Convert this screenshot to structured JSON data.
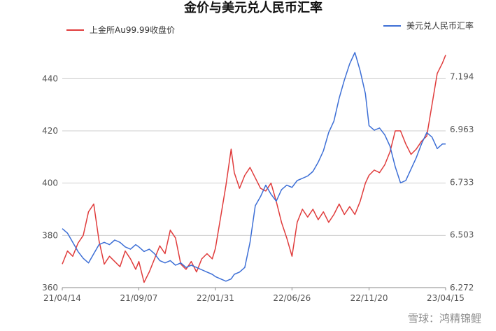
{
  "chart_data": {
    "type": "line",
    "title": "金价与美元兑人民币汇率",
    "xlabel": "",
    "ylabel": "",
    "x_ticks": [
      "21/04/14",
      "21/09/07",
      "22/01/31",
      "22/06/26",
      "22/11/20",
      "23/04/15"
    ],
    "x_range": [
      "21/04/14",
      "23/04/15"
    ],
    "y_left": {
      "ticks": [
        "360",
        "380",
        "400",
        "420",
        "440"
      ],
      "ylim": [
        360,
        450
      ]
    },
    "y_right": {
      "ticks": [
        "6.272",
        "6.503",
        "6.733",
        "6.963",
        "7.194"
      ],
      "ylim": [
        6.272,
        7.3
      ]
    },
    "grid": "horizontal",
    "legend": {
      "left": "top-left",
      "right": "top-right"
    },
    "series": [
      {
        "name": "上金所Au99.99收盘价",
        "axis": "left",
        "color": "#e03c3c",
        "x": [
          "21/04/14",
          "21/04/24",
          "21/05/04",
          "21/05/14",
          "21/05/24",
          "21/06/03",
          "21/06/13",
          "21/06/23",
          "21/07/03",
          "21/07/13",
          "21/07/23",
          "21/08/02",
          "21/08/12",
          "21/08/22",
          "21/09/01",
          "21/09/07",
          "21/09/17",
          "21/09/27",
          "21/10/07",
          "21/10/17",
          "21/10/27",
          "21/11/06",
          "21/11/16",
          "21/11/26",
          "21/12/06",
          "21/12/16",
          "21/12/26",
          "22/01/05",
          "22/01/15",
          "22/01/25",
          "22/01/31",
          "22/02/10",
          "22/02/20",
          "22/03/02",
          "22/03/08",
          "22/03/18",
          "22/03/28",
          "22/04/07",
          "22/04/17",
          "22/04/27",
          "22/05/07",
          "22/05/17",
          "22/05/27",
          "22/06/06",
          "22/06/16",
          "22/06/26",
          "22/07/06",
          "22/07/16",
          "22/07/26",
          "22/08/05",
          "22/08/15",
          "22/08/25",
          "22/09/04",
          "22/09/14",
          "22/09/24",
          "22/10/04",
          "22/10/14",
          "22/10/24",
          "22/11/03",
          "22/11/13",
          "22/11/20",
          "22/11/30",
          "22/12/10",
          "22/12/20",
          "22/12/30",
          "23/01/09",
          "23/01/19",
          "23/01/29",
          "23/02/08",
          "23/02/18",
          "23/02/28",
          "23/03/10",
          "23/03/20",
          "23/03/30",
          "23/04/09",
          "23/04/15"
        ],
        "values": [
          369,
          374,
          372,
          377,
          380,
          389,
          392,
          378,
          369,
          372,
          370,
          368,
          374,
          371,
          367,
          370,
          362,
          366,
          371,
          376,
          373,
          382,
          379,
          369,
          367,
          370,
          366,
          371,
          373,
          371,
          375,
          387,
          399,
          413,
          404,
          398,
          403,
          406,
          402,
          398,
          397,
          400,
          393,
          385,
          379,
          372,
          385,
          390,
          387,
          390,
          386,
          389,
          385,
          388,
          392,
          388,
          391,
          388,
          393,
          400,
          403,
          405,
          404,
          407,
          412,
          420,
          420,
          415,
          411,
          413,
          416,
          418,
          430,
          442,
          446,
          449
        ]
      },
      {
        "name": "美元兑人民币汇率",
        "axis": "right",
        "color": "#3d6fd6",
        "x": [
          "21/04/14",
          "21/04/24",
          "21/05/04",
          "21/05/14",
          "21/05/24",
          "21/06/03",
          "21/06/13",
          "21/06/23",
          "21/07/03",
          "21/07/13",
          "21/07/23",
          "21/08/02",
          "21/08/12",
          "21/08/22",
          "21/09/01",
          "21/09/07",
          "21/09/17",
          "21/09/27",
          "21/10/07",
          "21/10/17",
          "21/10/27",
          "21/11/06",
          "21/11/16",
          "21/11/26",
          "21/12/06",
          "21/12/16",
          "21/12/26",
          "22/01/05",
          "22/01/15",
          "22/01/25",
          "22/01/31",
          "22/02/10",
          "22/02/20",
          "22/03/02",
          "22/03/08",
          "22/03/18",
          "22/03/28",
          "22/04/07",
          "22/04/17",
          "22/04/27",
          "22/05/07",
          "22/05/17",
          "22/05/27",
          "22/06/06",
          "22/06/16",
          "22/06/26",
          "22/07/06",
          "22/07/16",
          "22/07/26",
          "22/08/05",
          "22/08/15",
          "22/08/25",
          "22/09/04",
          "22/09/14",
          "22/09/24",
          "22/10/04",
          "22/10/14",
          "22/10/24",
          "22/11/03",
          "22/11/13",
          "22/11/20",
          "22/11/30",
          "22/12/10",
          "22/12/20",
          "22/12/30",
          "23/01/09",
          "23/01/19",
          "23/01/29",
          "23/02/08",
          "23/02/18",
          "23/02/28",
          "23/03/10",
          "23/03/20",
          "23/03/30",
          "23/04/09",
          "23/04/15"
        ],
        "values": [
          6.53,
          6.51,
          6.47,
          6.43,
          6.4,
          6.38,
          6.42,
          6.46,
          6.47,
          6.46,
          6.48,
          6.47,
          6.45,
          6.44,
          6.46,
          6.45,
          6.43,
          6.44,
          6.42,
          6.39,
          6.38,
          6.39,
          6.37,
          6.38,
          6.36,
          6.37,
          6.36,
          6.35,
          6.34,
          6.33,
          6.32,
          6.31,
          6.3,
          6.31,
          6.33,
          6.34,
          6.36,
          6.47,
          6.63,
          6.67,
          6.72,
          6.68,
          6.65,
          6.7,
          6.72,
          6.71,
          6.74,
          6.75,
          6.76,
          6.78,
          6.82,
          6.87,
          6.95,
          7.0,
          7.1,
          7.18,
          7.25,
          7.3,
          7.22,
          7.12,
          6.98,
          6.96,
          6.97,
          6.94,
          6.89,
          6.8,
          6.73,
          6.74,
          6.79,
          6.84,
          6.9,
          6.95,
          6.93,
          6.88,
          6.9,
          6.9
        ]
      }
    ]
  },
  "watermark": "雪球：鸿精锦鲤"
}
